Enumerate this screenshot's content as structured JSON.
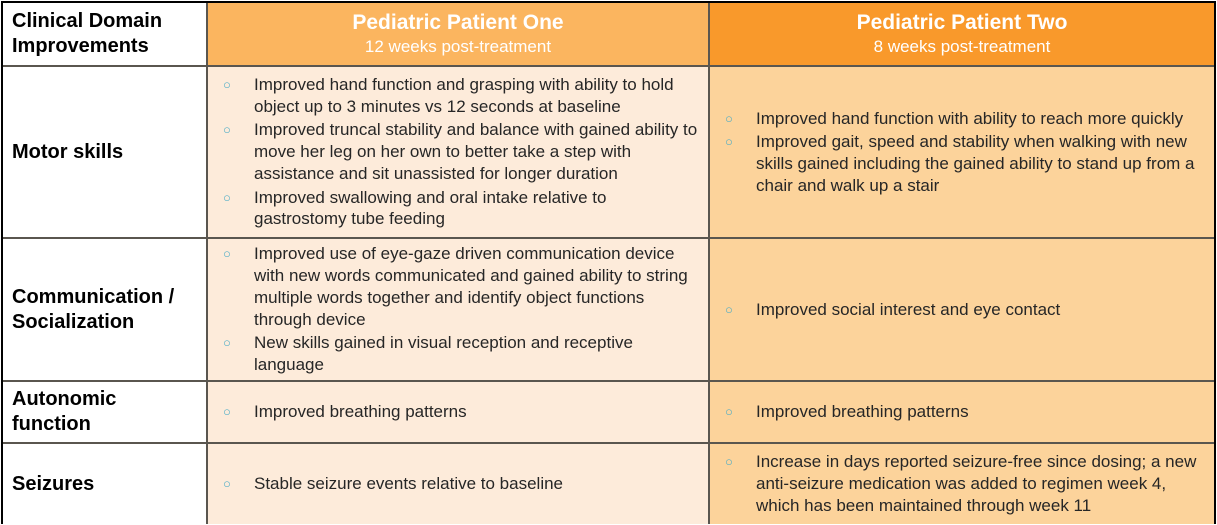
{
  "title": "Clinical Domain Improvements",
  "colors": {
    "header_one_bg": "#fbb55f",
    "header_two_bg": "#f9992b",
    "cell_one_bg": "#fdebda",
    "cell_two_bg": "#fcd39b",
    "bullet": "#4bacc6",
    "grid_line": "#5a564f",
    "outer_border": "#000000",
    "header_text": "#ffffff",
    "label_text": "#000000",
    "body_text": "#262626"
  },
  "bullet_glyph": "○",
  "corner": {
    "label": "Clinical Domain\nImprovements"
  },
  "columns": [
    {
      "title": "Pediatric Patient One",
      "subtitle": "12 weeks post-treatment"
    },
    {
      "title": "Pediatric Patient Two",
      "subtitle": "8 weeks post-treatment"
    }
  ],
  "rows": [
    {
      "label": "Motor skills",
      "patient_one": [
        "Improved hand function and grasping with ability to hold object up to 3 minutes vs 12 seconds at baseline",
        "Improved truncal stability and balance with gained ability to move her leg on her own to better take a step with assistance and sit unassisted for longer duration",
        "Improved swallowing and oral intake relative to gastrostomy tube feeding"
      ],
      "patient_two": [
        "Improved hand function with ability to reach more quickly",
        "Improved gait, speed and stability when walking with new skills gained including the gained ability to stand up from a chair and walk up a stair"
      ]
    },
    {
      "label": "Communication /\nSocialization",
      "patient_one": [
        "Improved use of eye-gaze driven communication device with new words communicated and gained ability to string multiple words together and identify object functions through device",
        "New skills gained in visual reception and receptive language"
      ],
      "patient_two": [
        "Improved social interest and eye contact"
      ]
    },
    {
      "label": "Autonomic\nfunction",
      "patient_one": [
        "Improved breathing patterns"
      ],
      "patient_two": [
        "Improved breathing patterns"
      ]
    },
    {
      "label": "Seizures",
      "patient_one": [
        "Stable seizure events relative to baseline"
      ],
      "patient_two": [
        "Increase in days reported seizure-free since dosing; a new anti-seizure medication was added to regimen week 4, which has been maintained through week 11"
      ]
    }
  ]
}
